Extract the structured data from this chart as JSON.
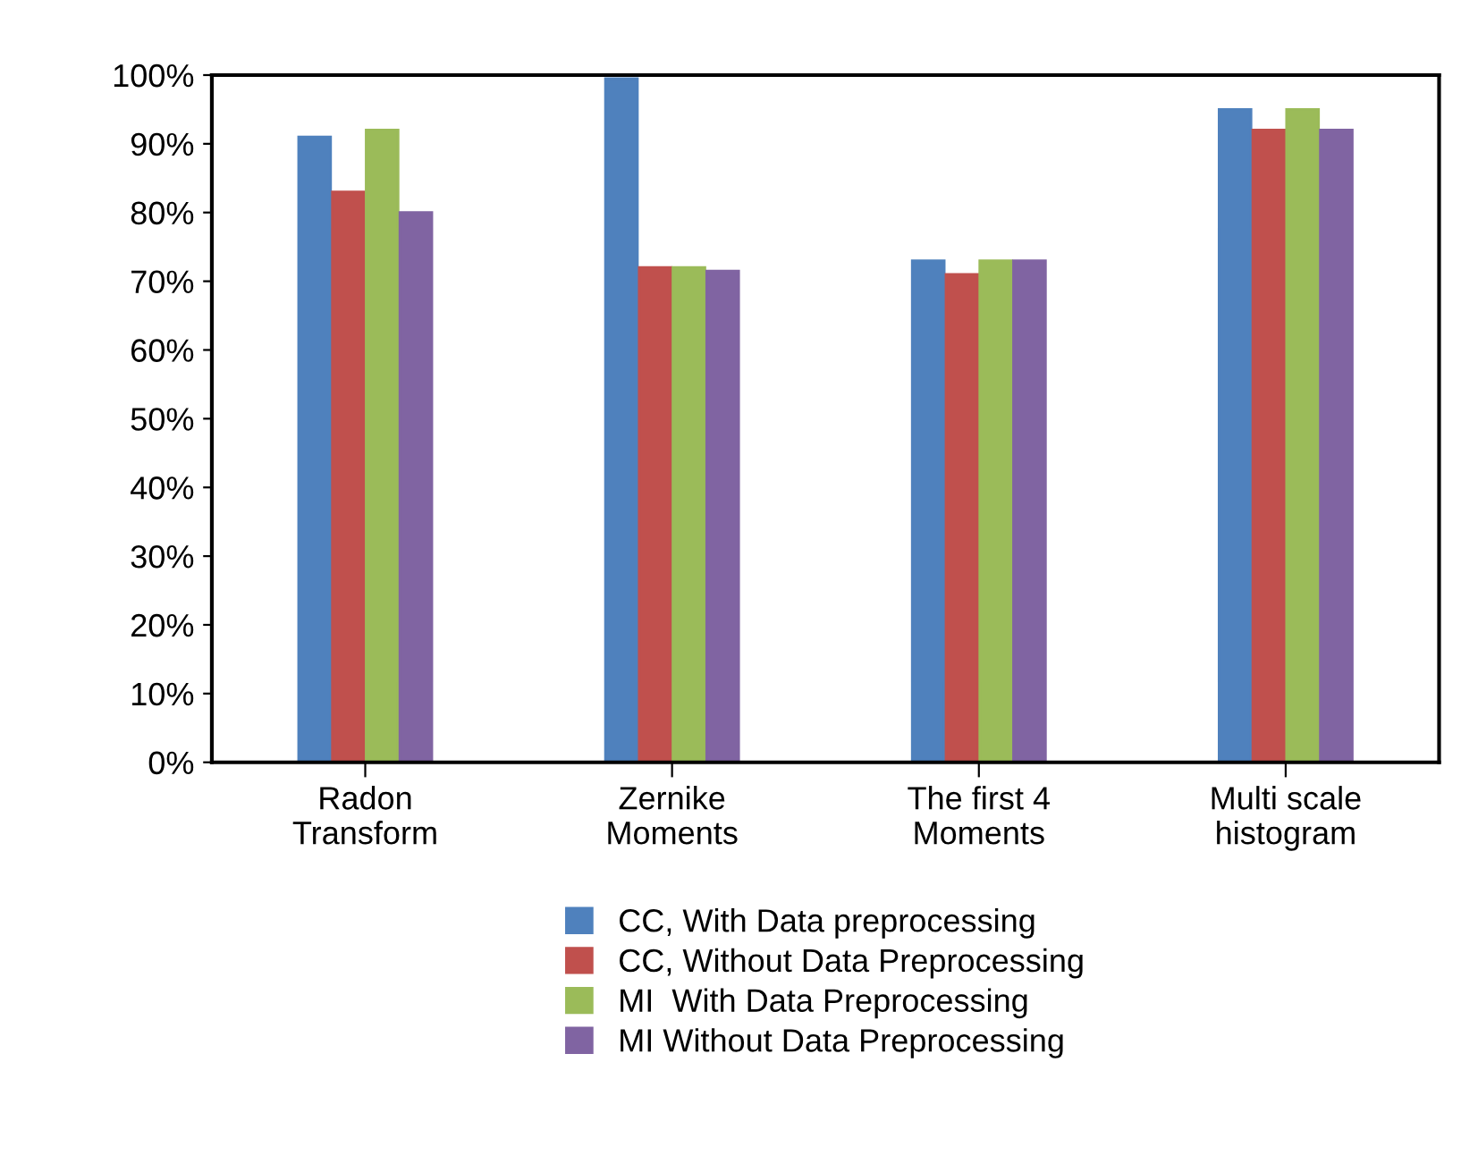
{
  "chart_data": {
    "type": "bar",
    "categories": [
      "Radon\nTransform",
      "Zernike\nMoments",
      "The first 4\nMoments",
      "Multi scale\nhistogram"
    ],
    "series": [
      {
        "name": "CC, With Data preprocessing",
        "color": "#4f81bd",
        "values": [
          91,
          99.5,
          73,
          95
        ]
      },
      {
        "name": "CC, Without Data Preprocessing",
        "color": "#c0504d",
        "values": [
          83,
          72,
          71,
          92
        ]
      },
      {
        "name": "MI  With Data Preprocessing",
        "color": "#9bbb59",
        "values": [
          92,
          72,
          73,
          95
        ]
      },
      {
        "name": "MI Without Data Preprocessing",
        "color": "#8064a2",
        "values": [
          80,
          71.5,
          73,
          92
        ]
      }
    ],
    "ylim": [
      0,
      100
    ],
    "yticks": [
      {
        "value": 0,
        "label": "0%"
      },
      {
        "value": 10,
        "label": "10%"
      },
      {
        "value": 20,
        "label": "20%"
      },
      {
        "value": 30,
        "label": "30%"
      },
      {
        "value": 40,
        "label": "40%"
      },
      {
        "value": 50,
        "label": "50%"
      },
      {
        "value": 60,
        "label": "60%"
      },
      {
        "value": 70,
        "label": "70%"
      },
      {
        "value": 80,
        "label": "80%"
      },
      {
        "value": 90,
        "label": "90%"
      },
      {
        "value": 100,
        "label": "100%"
      }
    ],
    "legend": "bottom",
    "grid": false
  }
}
